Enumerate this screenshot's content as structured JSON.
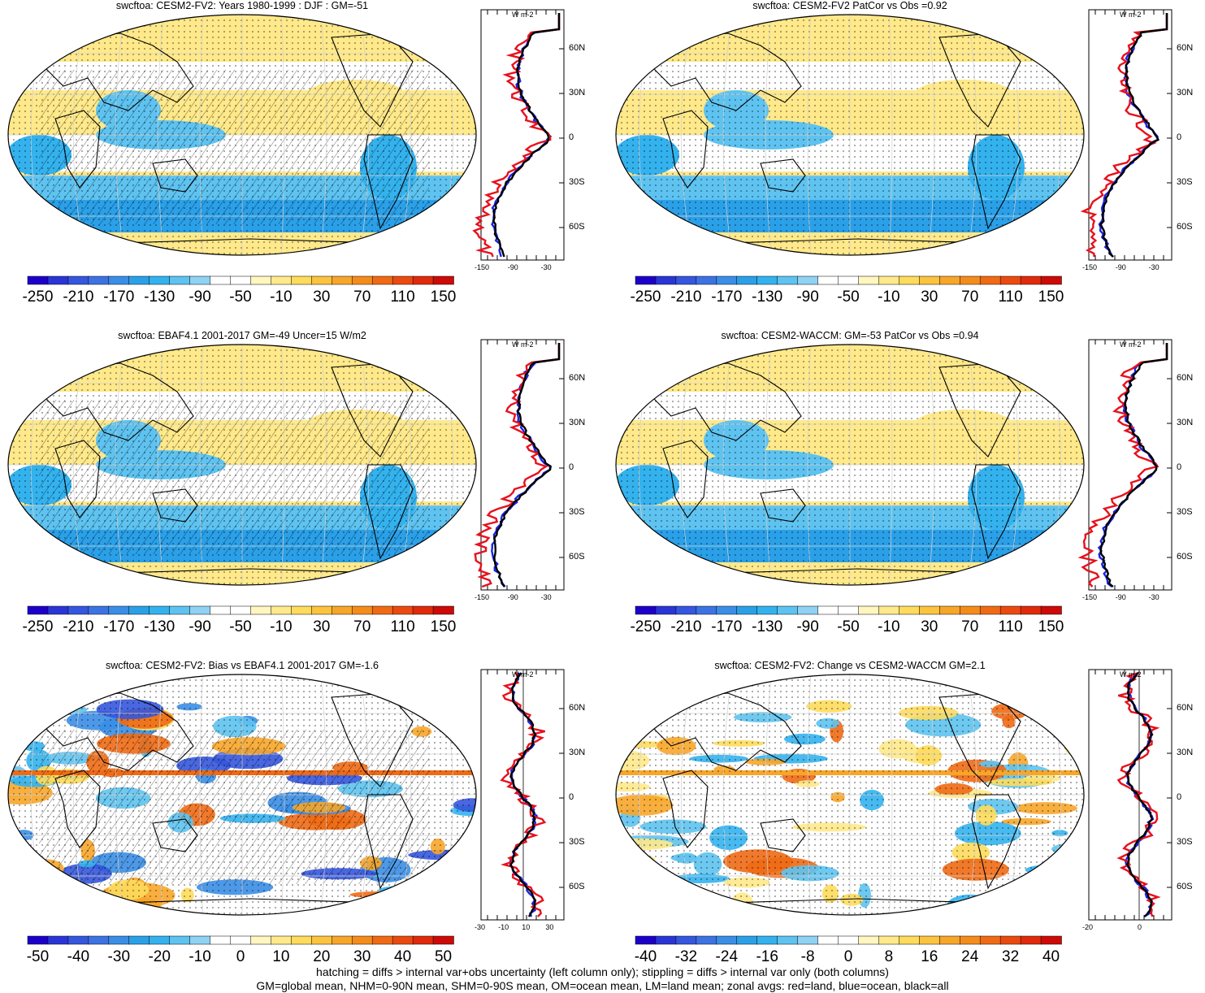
{
  "panels": [
    {
      "title": "swcftoa: CESM2-FV2: Years 1980-1999 : DJF : GM=-51",
      "colorbar": {
        "ticks": [
          "-250",
          "-210",
          "-170",
          "-130",
          "-90",
          "-50",
          "-10",
          "30",
          "70",
          "110",
          "150"
        ]
      },
      "zonal": {
        "unit": "W m-2",
        "xticks": [
          "-150",
          "-90",
          "-30"
        ],
        "lats": [
          "60N",
          "30N",
          "0",
          "30S",
          "60S"
        ]
      }
    },
    {
      "title": "swcftoa: CESM2-FV2 PatCor vs Obs =0.92",
      "colorbar": {
        "ticks": [
          "-250",
          "-210",
          "-170",
          "-130",
          "-90",
          "-50",
          "-10",
          "30",
          "70",
          "110",
          "150"
        ]
      },
      "zonal": {
        "unit": "W m-2",
        "xticks": [
          "-150",
          "-90",
          "-30"
        ],
        "lats": [
          "60N",
          "30N",
          "0",
          "30S",
          "60S"
        ]
      }
    },
    {
      "title": "swcftoa: EBAF4.1 2001-2017 GM=-49 Uncer=15 W/m2",
      "colorbar": {
        "ticks": [
          "-250",
          "-210",
          "-170",
          "-130",
          "-90",
          "-50",
          "-10",
          "30",
          "70",
          "110",
          "150"
        ]
      },
      "zonal": {
        "unit": "W m-2",
        "xticks": [
          "-150",
          "-90",
          "-30"
        ],
        "lats": [
          "60N",
          "30N",
          "0",
          "30S",
          "60S"
        ]
      }
    },
    {
      "title": "swcftoa: CESM2-WACCM: GM=-53 PatCor vs Obs =0.94",
      "colorbar": {
        "ticks": [
          "-250",
          "-210",
          "-170",
          "-130",
          "-90",
          "-50",
          "-10",
          "30",
          "70",
          "110",
          "150"
        ]
      },
      "zonal": {
        "unit": "W m-2",
        "xticks": [
          "-150",
          "-90",
          "-30"
        ],
        "lats": [
          "60N",
          "30N",
          "0",
          "30S",
          "60S"
        ]
      }
    },
    {
      "title": "swcftoa: CESM2-FV2: Bias vs EBAF4.1 2001-2017 GM=-1.6",
      "colorbar": {
        "ticks": [
          "-50",
          "-40",
          "-30",
          "-20",
          "-10",
          "0",
          "10",
          "20",
          "30",
          "40",
          "50"
        ]
      },
      "zonal": {
        "unit": "W m-2",
        "xticks": [
          "-30",
          "-10",
          "10",
          "30"
        ],
        "lats": [
          "60N",
          "30N",
          "0",
          "30S",
          "60S"
        ]
      }
    },
    {
      "title": "swcftoa: CESM2-FV2: Change vs CESM2-WACCM GM=2.1",
      "colorbar": {
        "ticks": [
          "-40",
          "-32",
          "-24",
          "-16",
          "-8",
          "0",
          "8",
          "16",
          "24",
          "32",
          "40"
        ]
      },
      "zonal": {
        "unit": "W m-2",
        "xticks": [
          "-20",
          "0"
        ],
        "lats": [
          "60N",
          "30N",
          "0",
          "30S",
          "60S"
        ]
      }
    }
  ],
  "colors": {
    "scale": [
      "#1d00c8",
      "#2a35d6",
      "#3556dd",
      "#3d72e2",
      "#3a8ee6",
      "#2aa0e8",
      "#33b2ee",
      "#5ec3f0",
      "#8fd2f3",
      "#ffffff",
      "#ffffff",
      "#fff6c0",
      "#ffe98a",
      "#fedb5c",
      "#fbc33e",
      "#f7a62a",
      "#f48c1c",
      "#f06a14",
      "#ea4a10",
      "#e02a0c",
      "#cc0a08"
    ],
    "land": "#e8101c",
    "ocean": "#1a24e6",
    "all": "#000000"
  },
  "footer": {
    "line1": "hatching = diffs > internal var+obs uncertainty (left column only); stippling = diffs > internal var only (both columns)",
    "line2": "GM=global mean, NHM=0-90N mean, SHM=0-90S mean, OM=ocean mean, LM=land mean; zonal avgs: red=land, blue=ocean, black=all"
  }
}
